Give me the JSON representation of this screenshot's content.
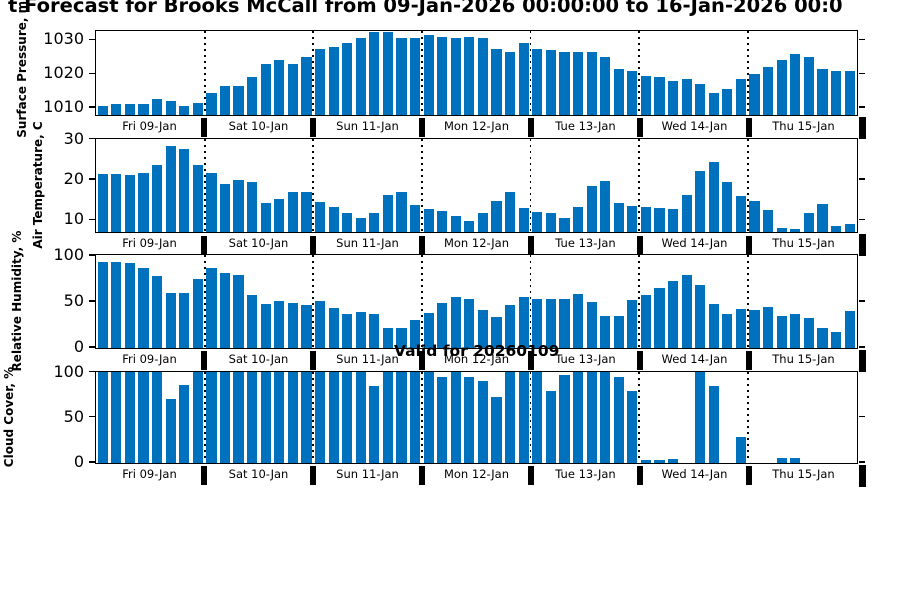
{
  "title": {
    "visible_text": "t Forecast for Brooks McCall from 09-Jan-2026 00:00:00 to 16-Jan-2026 00:0"
  },
  "annotation": {
    "text": "Valid for 20260109"
  },
  "colors": {
    "bar_fill": "#0072BD",
    "axis": "#000000",
    "background": "#FFFFFF",
    "text": "#000000"
  },
  "x_axis": {
    "day_labels": [
      "Fri 09-Jan",
      "Sat 10-Jan",
      "Sun 11-Jan",
      "Mon 12-Jan",
      "Tue 13-Jan",
      "Wed 14-Jan",
      "Thu 15-Jan"
    ],
    "bars_per_day": 8,
    "day_separator_style": "dotted"
  },
  "chart_data": [
    {
      "name": "surface-pressure",
      "type": "bar",
      "ylabel": "Surface Pressure, mb",
      "yticks": [
        1010,
        1020,
        1030
      ],
      "ylim": [
        1008,
        1032.5
      ],
      "values": [
        1010.5,
        1011,
        1011,
        1011,
        1012.5,
        1012,
        1010.5,
        1011.5,
        1014.5,
        1016.5,
        1016.5,
        1019,
        1023,
        1024,
        1023,
        1025,
        1027.5,
        1028,
        1029,
        1030.5,
        1032.3,
        1032.5,
        1030.5,
        1030.5,
        1031.5,
        1031,
        1030.5,
        1031,
        1030.5,
        1027.5,
        1026.5,
        1029,
        1027.5,
        1027,
        1026.5,
        1026.5,
        1026.5,
        1025,
        1021.5,
        1021,
        1019.5,
        1019,
        1018,
        1018.5,
        1017,
        1014.5,
        1015.5,
        1018.5,
        1020,
        1022,
        1024,
        1026,
        1025,
        1021.5,
        1021,
        1021
      ]
    },
    {
      "name": "air-temperature",
      "type": "bar",
      "ylabel": "Air Temperature, C",
      "yticks": [
        10,
        20,
        30
      ],
      "ylim": [
        7,
        30
      ],
      "values": [
        21.3,
        21.4,
        21.2,
        21.5,
        23.7,
        28.2,
        27.6,
        23.7,
        21.6,
        19,
        19.8,
        19.3,
        14.3,
        15.1,
        16.8,
        16.9,
        14.5,
        13.2,
        11.8,
        10.5,
        11.8,
        16.2,
        17,
        13.8,
        12.8,
        12.3,
        11,
        9.8,
        11.8,
        14.8,
        16.8,
        13,
        12,
        11.8,
        10.4,
        13.2,
        18.4,
        19.7,
        14.2,
        13.4,
        13.2,
        12.9,
        12.7,
        16.2,
        22.2,
        24.3,
        19.4,
        15.8,
        14.6,
        12.5,
        8,
        7.8,
        11.8,
        14,
        8.6,
        9
      ]
    },
    {
      "name": "relative-humidity",
      "type": "bar",
      "ylabel": "Relative Humidity, %",
      "yticks": [
        0,
        50,
        100
      ],
      "ylim": [
        0,
        100
      ],
      "values": [
        93,
        93,
        92,
        86,
        78,
        59,
        59,
        75,
        86,
        81,
        79,
        57,
        47,
        51,
        48,
        46,
        51,
        43,
        36,
        39,
        36,
        21,
        21,
        30,
        38,
        48,
        55,
        53,
        41,
        33,
        46,
        55,
        53,
        53,
        53,
        58,
        49,
        34,
        34,
        52,
        57,
        65,
        72,
        79,
        68,
        47,
        36,
        42,
        41,
        44,
        34,
        37,
        32,
        21,
        17,
        40
      ]
    },
    {
      "name": "cloud-cover",
      "type": "bar",
      "ylabel": "Cloud Cover, %",
      "yticks": [
        0,
        50,
        100
      ],
      "ylim": [
        0,
        100
      ],
      "values": [
        100,
        100,
        100,
        100,
        100,
        70,
        86,
        100,
        100,
        100,
        100,
        100,
        100,
        100,
        100,
        100,
        100,
        100,
        100,
        100,
        85,
        100,
        100,
        100,
        100,
        95,
        100,
        95,
        90,
        72,
        100,
        100,
        100,
        79,
        97,
        100,
        100,
        100,
        95,
        79,
        3,
        3,
        4,
        0,
        100,
        85,
        0,
        28,
        0,
        0,
        5,
        5,
        0,
        0,
        0,
        0
      ]
    }
  ]
}
